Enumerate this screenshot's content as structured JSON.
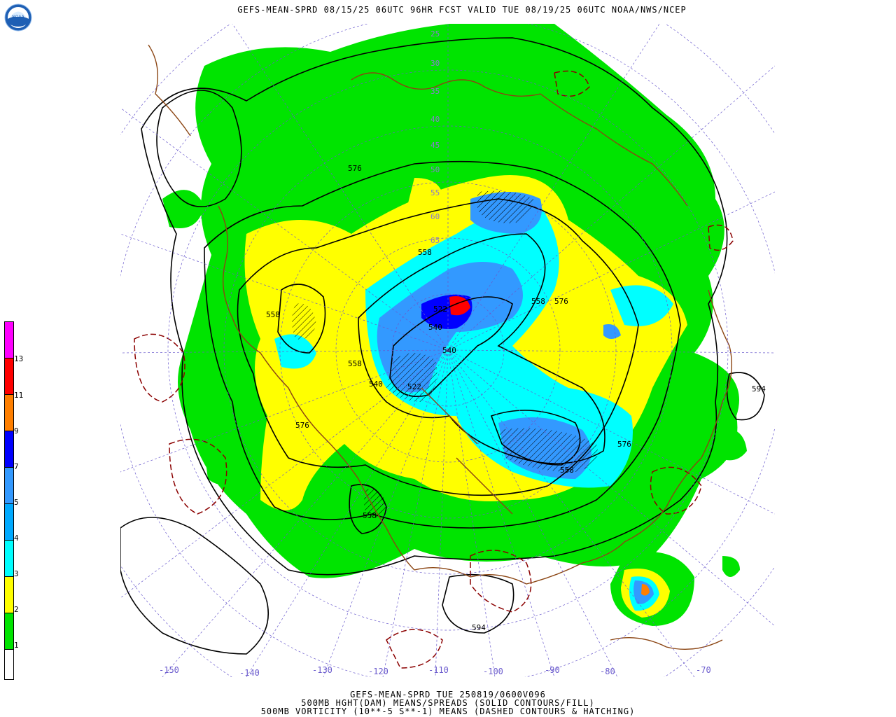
{
  "title": "GEFS-MEAN-SPRD 08/15/25 06UTC 96HR FCST VALID TUE 08/19/25 06UTC NOAA/NWS/NCEP",
  "footer": {
    "line1": "GEFS-MEAN-SPRD TUE 250819/0600V096",
    "line2": "500MB HGHT(DAM) MEANS/SPREADS (SOLID CONTOURS/FILL)",
    "line3": "500MB VORTICITY (10**-5 S**-1) MEANS (DASHED CONTOURS & HATCHING)"
  },
  "logo": {
    "text": "NOAA",
    "icon": "noaa-logo-icon"
  },
  "colors": {
    "green": "#00e400",
    "yellow": "#ffff00",
    "cyan": "#00ffff",
    "lightblue": "#3399ff",
    "blue": "#0000ff",
    "orange": "#ff7f00",
    "red": "#ff0000",
    "magenta": "#ff00ff",
    "coast": "#8b4513",
    "dashed_vort": "#8b0000",
    "grid": "#6a5acd"
  },
  "legend": {
    "levels": [
      "13",
      "11",
      "9",
      "7",
      "5",
      "4",
      "3",
      "2",
      "1"
    ],
    "colors": [
      "#ff00ff",
      "#ff0000",
      "#ff7f00",
      "#0000ff",
      "#3399ff",
      "#00aaff",
      "#00ffff",
      "#ffff00",
      "#00e400",
      "#ffffff"
    ]
  },
  "longitude_labels": [
    "-150",
    "-140",
    "-130",
    "-120",
    "-110",
    "-100",
    "-90",
    "-80",
    "-70"
  ],
  "latitude_labels": [
    "25",
    "30",
    "35",
    "40",
    "45",
    "50",
    "55",
    "60",
    "65"
  ],
  "contour_labels": [
    "576",
    "558",
    "558",
    "558",
    "540",
    "522",
    "540",
    "576",
    "576",
    "558",
    "576",
    "558",
    "558",
    "594",
    "594",
    "540",
    "522"
  ]
}
